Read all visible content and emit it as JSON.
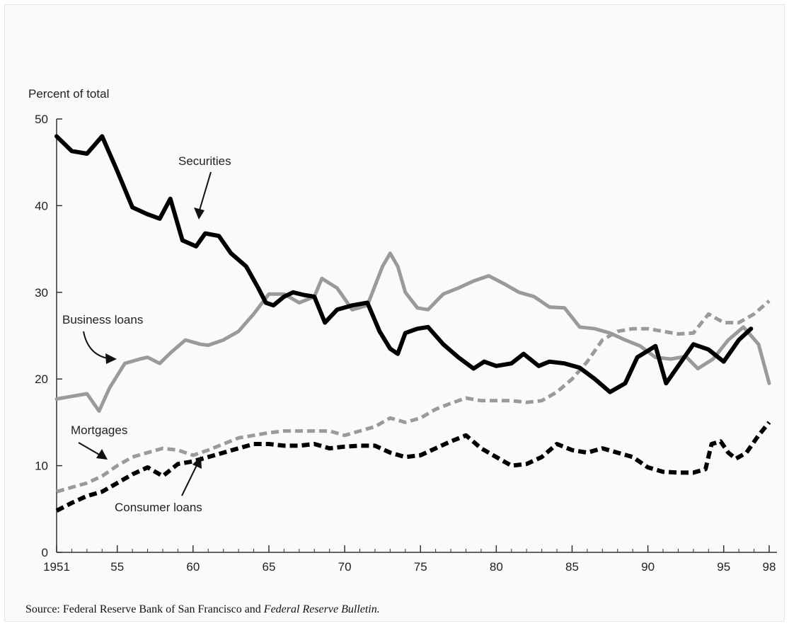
{
  "chart_data": {
    "type": "line",
    "ylabel": "Percent of total",
    "ylim": [
      0,
      50
    ],
    "xlim": [
      1951,
      1998
    ],
    "y_ticks": [
      0,
      10,
      20,
      30,
      40,
      50
    ],
    "x_ticks": [
      {
        "value": 1951,
        "label": "1951"
      },
      {
        "value": 1955,
        "label": "55"
      },
      {
        "value": 1960,
        "label": "60"
      },
      {
        "value": 1965,
        "label": "65"
      },
      {
        "value": 1970,
        "label": "70"
      },
      {
        "value": 1975,
        "label": "75"
      },
      {
        "value": 1980,
        "label": "80"
      },
      {
        "value": 1985,
        "label": "85"
      },
      {
        "value": 1990,
        "label": "90"
      },
      {
        "value": 1995,
        "label": "95"
      },
      {
        "value": 1998,
        "label": "98"
      }
    ],
    "grid": false,
    "series": [
      {
        "name": "Securities",
        "color": "#000000",
        "style": "solid",
        "points": [
          [
            1951,
            48
          ],
          [
            1952,
            46.3
          ],
          [
            1953,
            46
          ],
          [
            1954,
            48
          ],
          [
            1955,
            44
          ],
          [
            1956,
            39.8
          ],
          [
            1957,
            39
          ],
          [
            1957.8,
            38.5
          ],
          [
            1958.5,
            40.8
          ],
          [
            1959.3,
            36
          ],
          [
            1960.2,
            35.3
          ],
          [
            1960.8,
            36.8
          ],
          [
            1961.7,
            36.5
          ],
          [
            1962.5,
            34.5
          ],
          [
            1963.5,
            33
          ],
          [
            1964.3,
            30.5
          ],
          [
            1964.8,
            28.8
          ],
          [
            1965.3,
            28.5
          ],
          [
            1966,
            29.5
          ],
          [
            1966.6,
            30
          ],
          [
            1967.3,
            29.7
          ],
          [
            1968,
            29.5
          ],
          [
            1968.7,
            26.5
          ],
          [
            1969.5,
            28
          ],
          [
            1970.5,
            28.5
          ],
          [
            1971.5,
            28.8
          ],
          [
            1972.3,
            25.5
          ],
          [
            1973,
            23.5
          ],
          [
            1973.5,
            22.9
          ],
          [
            1974,
            25.3
          ],
          [
            1974.8,
            25.8
          ],
          [
            1975.5,
            26
          ],
          [
            1976.5,
            24
          ],
          [
            1977.5,
            22.5
          ],
          [
            1978.5,
            21.2
          ],
          [
            1979.2,
            22
          ],
          [
            1980,
            21.5
          ],
          [
            1981,
            21.8
          ],
          [
            1981.8,
            22.9
          ],
          [
            1982.8,
            21.5
          ],
          [
            1983.5,
            22
          ],
          [
            1984.5,
            21.8
          ],
          [
            1985.5,
            21.3
          ],
          [
            1986.5,
            20
          ],
          [
            1987.5,
            18.5
          ],
          [
            1988.5,
            19.5
          ],
          [
            1989.3,
            22.5
          ],
          [
            1990.5,
            23.8
          ],
          [
            1991.2,
            19.5
          ],
          [
            1992,
            21.5
          ],
          [
            1993,
            24
          ],
          [
            1994,
            23.4
          ],
          [
            1995,
            22
          ],
          [
            1996,
            24.5
          ],
          [
            1996.8,
            25.8
          ]
        ]
      },
      {
        "name": "Business loans",
        "color": "#9a9a9a",
        "style": "solid",
        "points": [
          [
            1951,
            17.7
          ],
          [
            1952,
            18
          ],
          [
            1953,
            18.3
          ],
          [
            1953.8,
            16.3
          ],
          [
            1954.5,
            19
          ],
          [
            1955.5,
            21.8
          ],
          [
            1956.5,
            22.3
          ],
          [
            1957,
            22.5
          ],
          [
            1957.8,
            21.8
          ],
          [
            1958.5,
            23
          ],
          [
            1959.5,
            24.5
          ],
          [
            1960.5,
            24
          ],
          [
            1961,
            23.9
          ],
          [
            1962,
            24.5
          ],
          [
            1963,
            25.5
          ],
          [
            1964,
            27.5
          ],
          [
            1965,
            29.8
          ],
          [
            1966,
            29.8
          ],
          [
            1967,
            28.8
          ],
          [
            1968,
            29.5
          ],
          [
            1968.5,
            31.6
          ],
          [
            1969.5,
            30.5
          ],
          [
            1970.5,
            28
          ],
          [
            1971.5,
            28.5
          ],
          [
            1972.5,
            33
          ],
          [
            1973,
            34.5
          ],
          [
            1973.5,
            33
          ],
          [
            1974,
            30
          ],
          [
            1974.8,
            28.2
          ],
          [
            1975.5,
            28
          ],
          [
            1976.5,
            29.8
          ],
          [
            1977.5,
            30.5
          ],
          [
            1978.5,
            31.3
          ],
          [
            1979.5,
            31.9
          ],
          [
            1980.5,
            31
          ],
          [
            1981.5,
            30
          ],
          [
            1982.5,
            29.5
          ],
          [
            1983.5,
            28.3
          ],
          [
            1984.5,
            28.2
          ],
          [
            1985.5,
            26
          ],
          [
            1986.5,
            25.8
          ],
          [
            1987.5,
            25.3
          ],
          [
            1988.5,
            24.5
          ],
          [
            1989.5,
            23.8
          ],
          [
            1990.5,
            22.5
          ],
          [
            1991.5,
            22.3
          ],
          [
            1992.5,
            22.6
          ],
          [
            1993.3,
            21.2
          ],
          [
            1994.3,
            22.3
          ],
          [
            1995.3,
            24.5
          ],
          [
            1996.3,
            26
          ],
          [
            1997.3,
            24
          ],
          [
            1998,
            19.5
          ]
        ]
      },
      {
        "name": "Mortgages",
        "color": "#9a9a9a",
        "style": "dashed",
        "points": [
          [
            1951,
            7
          ],
          [
            1952,
            7.5
          ],
          [
            1953,
            8
          ],
          [
            1954,
            8.8
          ],
          [
            1955,
            10
          ],
          [
            1956,
            11
          ],
          [
            1957,
            11.5
          ],
          [
            1958,
            12
          ],
          [
            1959,
            11.8
          ],
          [
            1960,
            11.2
          ],
          [
            1961,
            11.8
          ],
          [
            1962,
            12.5
          ],
          [
            1963,
            13.2
          ],
          [
            1964,
            13.5
          ],
          [
            1965,
            13.8
          ],
          [
            1966,
            14
          ],
          [
            1967,
            14
          ],
          [
            1968,
            14
          ],
          [
            1969,
            14
          ],
          [
            1970,
            13.5
          ],
          [
            1971,
            14
          ],
          [
            1972,
            14.5
          ],
          [
            1973,
            15.5
          ],
          [
            1974,
            15
          ],
          [
            1975,
            15.5
          ],
          [
            1976,
            16.5
          ],
          [
            1977,
            17.2
          ],
          [
            1978,
            17.8
          ],
          [
            1979,
            17.5
          ],
          [
            1980,
            17.5
          ],
          [
            1981,
            17.5
          ],
          [
            1982,
            17.3
          ],
          [
            1983,
            17.5
          ],
          [
            1984,
            18.5
          ],
          [
            1985,
            20
          ],
          [
            1986,
            22
          ],
          [
            1987,
            24.5
          ],
          [
            1988,
            25.5
          ],
          [
            1989,
            25.8
          ],
          [
            1990,
            25.8
          ],
          [
            1991,
            25.5
          ],
          [
            1992,
            25.2
          ],
          [
            1993,
            25.3
          ],
          [
            1994,
            27.5
          ],
          [
            1995,
            26.5
          ],
          [
            1996,
            26.5
          ],
          [
            1997,
            27.5
          ],
          [
            1998,
            29
          ]
        ]
      },
      {
        "name": "Consumer loans",
        "color": "#000000",
        "style": "dashed",
        "points": [
          [
            1951,
            4.8
          ],
          [
            1952,
            5.7
          ],
          [
            1953,
            6.5
          ],
          [
            1954,
            7
          ],
          [
            1955,
            8
          ],
          [
            1956,
            9
          ],
          [
            1957,
            9.8
          ],
          [
            1958,
            8.8
          ],
          [
            1959,
            10.2
          ],
          [
            1960,
            10.5
          ],
          [
            1961,
            11
          ],
          [
            1962,
            11.5
          ],
          [
            1963,
            12
          ],
          [
            1964,
            12.5
          ],
          [
            1965,
            12.5
          ],
          [
            1966,
            12.3
          ],
          [
            1967,
            12.3
          ],
          [
            1968,
            12.5
          ],
          [
            1969,
            12
          ],
          [
            1970,
            12.2
          ],
          [
            1971,
            12.3
          ],
          [
            1972,
            12.3
          ],
          [
            1973,
            11.5
          ],
          [
            1974,
            11
          ],
          [
            1975,
            11.2
          ],
          [
            1976,
            12
          ],
          [
            1977,
            12.8
          ],
          [
            1978,
            13.5
          ],
          [
            1979,
            12
          ],
          [
            1980,
            11
          ],
          [
            1981,
            10
          ],
          [
            1982,
            10.2
          ],
          [
            1983,
            11
          ],
          [
            1984,
            12.5
          ],
          [
            1985,
            11.8
          ],
          [
            1986,
            11.5
          ],
          [
            1987,
            12
          ],
          [
            1988,
            11.5
          ],
          [
            1989,
            11
          ],
          [
            1990,
            9.8
          ],
          [
            1991,
            9.3
          ],
          [
            1992,
            9.2
          ],
          [
            1993,
            9.2
          ],
          [
            1993.8,
            9.6
          ],
          [
            1994.2,
            12.5
          ],
          [
            1994.8,
            12.8
          ],
          [
            1995.3,
            11.5
          ],
          [
            1995.8,
            10.8
          ],
          [
            1996.5,
            11.5
          ],
          [
            1997.3,
            13.5
          ],
          [
            1998,
            15
          ]
        ]
      }
    ],
    "annotations": [
      {
        "text": "Securities"
      },
      {
        "text": "Business loans"
      },
      {
        "text": "Mortgages"
      },
      {
        "text": "Consumer loans"
      }
    ]
  },
  "source": {
    "prefix": "Source: Federal Reserve Bank of San Francisco and ",
    "italic": "Federal Reserve Bulletin."
  }
}
